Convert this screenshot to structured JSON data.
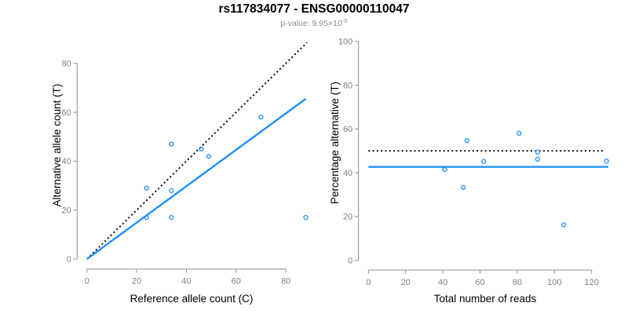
{
  "header": {
    "title": "rs117834077 - ENSG00000110047",
    "pvalue_prefix": "p-value: 9.95×10",
    "pvalue_exponent": "-5"
  },
  "colors": {
    "accent_blue": "#1E90FF",
    "axis_gray": "#8C8C8C",
    "tick_label_gray": "#7F7F7F",
    "line_black": "#000000",
    "background": "#FFFFFF"
  },
  "chart_data": [
    {
      "type": "scatter",
      "panel": "left",
      "xlabel": "Reference allele count (C)",
      "ylabel": "Alternative allele count (T)",
      "xlim": [
        0,
        88
      ],
      "ylim": [
        0,
        88
      ],
      "xticks": [
        0,
        20,
        40,
        60,
        80
      ],
      "yticks": [
        0,
        20,
        40,
        60,
        80
      ],
      "grid": false,
      "point_color": "#1E90FF",
      "points": [
        [
          24,
          17
        ],
        [
          24,
          29
        ],
        [
          34,
          17
        ],
        [
          34,
          28
        ],
        [
          34,
          47
        ],
        [
          46,
          45
        ],
        [
          49,
          42
        ],
        [
          70,
          58
        ],
        [
          88,
          17
        ]
      ],
      "lines": [
        {
          "name": "identity-line",
          "style": "dotted",
          "color": "#000000",
          "from": [
            0,
            0
          ],
          "to": [
            88.5,
            88.5
          ]
        },
        {
          "name": "regression-line",
          "style": "solid",
          "color": "#1E90FF",
          "from": [
            0,
            0
          ],
          "to": [
            88,
            65.5
          ]
        }
      ]
    },
    {
      "type": "scatter",
      "panel": "right",
      "xlabel": "Total number of reads",
      "ylabel": "Percentage alternative (T)",
      "xlim": [
        0,
        129
      ],
      "ylim": [
        0,
        100
      ],
      "xticks": [
        0,
        20,
        40,
        60,
        80,
        100,
        120
      ],
      "yticks": [
        0,
        20,
        40,
        60,
        80,
        100
      ],
      "grid": false,
      "point_color": "#1E90FF",
      "points": [
        [
          41,
          41.5
        ],
        [
          51,
          33.3
        ],
        [
          53,
          54.7
        ],
        [
          62,
          45.2
        ],
        [
          81,
          58
        ],
        [
          91,
          49.5
        ],
        [
          91,
          46.2
        ],
        [
          105,
          16.2
        ],
        [
          128,
          45.3
        ]
      ],
      "lines": [
        {
          "name": "fifty-percent-line",
          "style": "dotted",
          "color": "#000000",
          "from": [
            0,
            50
          ],
          "to": [
            127,
            50
          ]
        },
        {
          "name": "mean-percentage-line",
          "style": "solid",
          "color": "#1E90FF",
          "from": [
            0,
            42.7
          ],
          "to": [
            129,
            42.7
          ]
        }
      ]
    }
  ]
}
